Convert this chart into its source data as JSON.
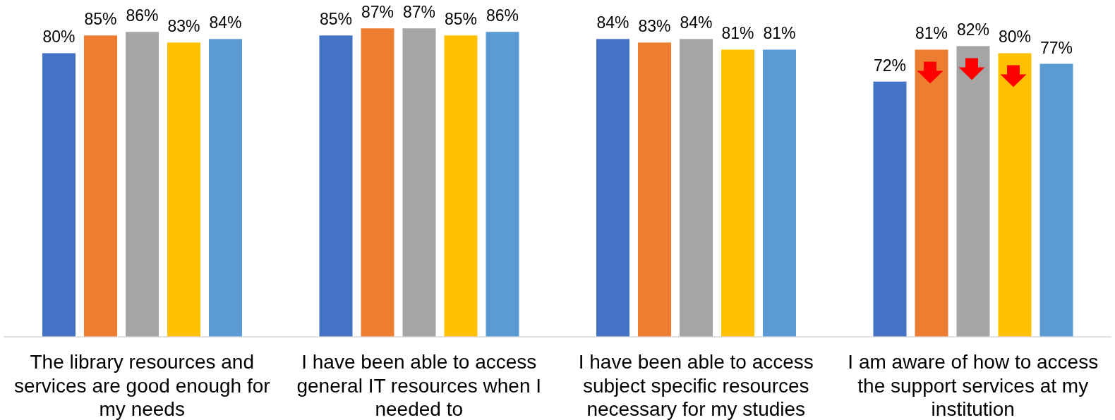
{
  "chart_data": {
    "type": "bar",
    "categories": [
      "The library resources and services are good enough for my needs",
      "I have been able to access general IT resources when I needed to",
      "I have been able to access subject specific resources necessary for my studies",
      "I am aware of how to access the support services at my institution"
    ],
    "series": [
      {
        "color": "#4472c4",
        "values": [
          80,
          85,
          84,
          72
        ],
        "value_labels": [
          "80%",
          "85%",
          "84%",
          "72%"
        ]
      },
      {
        "color": "#ed7d31",
        "values": [
          85,
          87,
          83,
          81
        ],
        "value_labels": [
          "85%",
          "87%",
          "83%",
          "81%"
        ]
      },
      {
        "color": "#a5a5a5",
        "values": [
          86,
          87,
          84,
          82
        ],
        "value_labels": [
          "86%",
          "87%",
          "84%",
          "82%"
        ]
      },
      {
        "color": "#ffc000",
        "values": [
          83,
          85,
          81,
          80
        ],
        "value_labels": [
          "83%",
          "85%",
          "81%",
          "80%"
        ]
      },
      {
        "color": "#5b9bd5",
        "values": [
          84,
          86,
          81,
          77
        ],
        "value_labels": [
          "84%",
          "86%",
          "81%",
          "77%"
        ]
      }
    ],
    "ylim": [
      0,
      95
    ],
    "tick_labels": "x"
  }
}
